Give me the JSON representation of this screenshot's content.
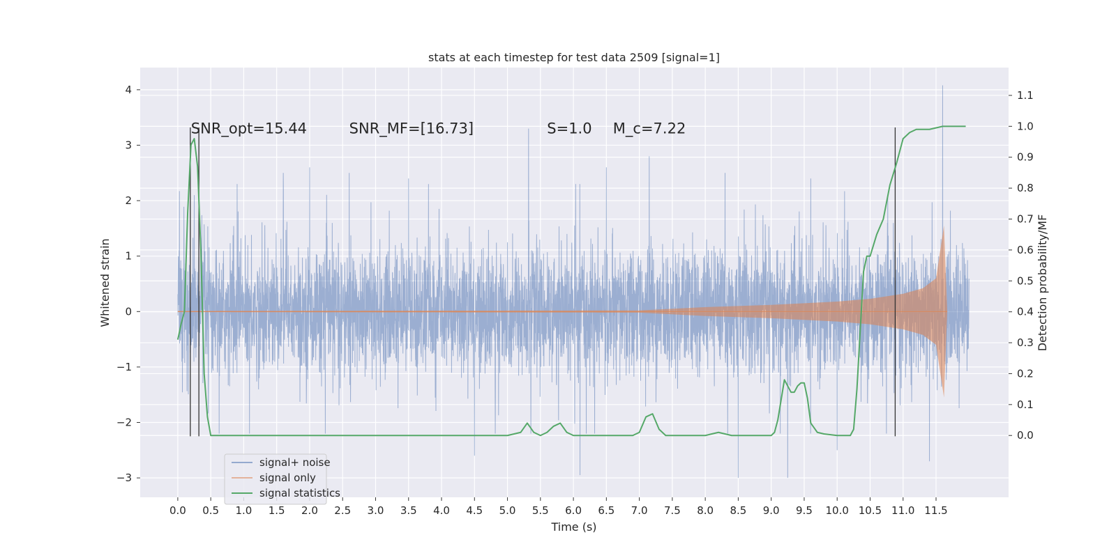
{
  "chart_data": {
    "type": "line",
    "title": "stats at each timestep for test data 2509 [signal=1]",
    "xlabel": "Time (s)",
    "ylabel": "Whitened strain",
    "ylabel_right": "Detection probability/MF",
    "xlim": [
      -0.57,
      12.6
    ],
    "ylim": [
      -3.35,
      4.4
    ],
    "ylim_right": [
      -0.2,
      1.19
    ],
    "xticks": [
      0.0,
      0.5,
      1.0,
      1.5,
      2.0,
      2.5,
      3.0,
      3.5,
      4.0,
      4.5,
      5.0,
      5.5,
      6.0,
      6.5,
      7.0,
      7.5,
      8.0,
      8.5,
      9.0,
      9.5,
      10.0,
      10.5,
      11.0,
      11.5
    ],
    "xtick_labels": [
      "0.0",
      "0.5",
      "1.0",
      "1.5",
      "2.0",
      "2.5",
      "3.0",
      "3.5",
      "4.0",
      "4.5",
      "5.0",
      "5.5",
      "6.0",
      "6.5",
      "7.0",
      "7.5",
      "8.0",
      "8.5",
      "9.0",
      "9.5",
      "10.0",
      "10.5",
      "11.0",
      "11.5"
    ],
    "yticks": [
      -3,
      -2,
      -1,
      0,
      1,
      2,
      3,
      4
    ],
    "ytick_labels": [
      "−3",
      "−2",
      "−1",
      "0",
      "1",
      "2",
      "3",
      "4"
    ],
    "yticks_right": [
      0.0,
      0.1,
      0.2,
      0.3,
      0.4,
      0.5,
      0.6,
      0.7,
      0.8,
      0.9,
      1.0,
      1.1
    ],
    "ytick_labels_right": [
      "0.0",
      "0.1",
      "0.2",
      "0.3",
      "0.4",
      "0.5",
      "0.6",
      "0.7",
      "0.8",
      "0.9",
      "1.0",
      "1.1"
    ],
    "grid": true,
    "legend_position": "lower-left",
    "annotations": [
      {
        "id": "snr-opt",
        "text": "SNR_opt=15.44",
        "x": 0.2,
        "y": 3.3
      },
      {
        "id": "snr-mf",
        "text": "SNR_MF=[16.73]",
        "x": 2.6,
        "y": 3.3
      },
      {
        "id": "s-value",
        "text": "S=1.0",
        "x": 5.6,
        "y": 3.3
      },
      {
        "id": "mc-value",
        "text": "M_c=7.22",
        "x": 6.6,
        "y": 3.3
      }
    ],
    "vertical_markers": [
      {
        "x": 0.19,
        "y_top": 3.32,
        "y_bottom": -2.25
      },
      {
        "x": 0.32,
        "y_top": 3.32,
        "y_bottom": -2.25
      },
      {
        "x": 10.88,
        "y_top": 3.32,
        "y_bottom": -2.25
      }
    ],
    "series": [
      {
        "name": "signal+ noise",
        "color": "#4c72b0",
        "x_range": [
          0.0,
          12.0
        ],
        "envelope_typical": [
          -1.4,
          1.4
        ],
        "peaks": [
          {
            "x": 0.25,
            "y": 2.1
          },
          {
            "x": 0.9,
            "y": 2.3
          },
          {
            "x": 1.6,
            "y": 2.5
          },
          {
            "x": 2.0,
            "y": 2.6
          },
          {
            "x": 2.6,
            "y": 2.5
          },
          {
            "x": 3.5,
            "y": 2.4
          },
          {
            "x": 4.5,
            "y": 2.5
          },
          {
            "x": 5.32,
            "y": 3.3
          },
          {
            "x": 6.5,
            "y": 2.6
          },
          {
            "x": 7.15,
            "y": 2.8
          },
          {
            "x": 8.3,
            "y": 2.5
          },
          {
            "x": 9.6,
            "y": 2.4
          },
          {
            "x": 11.6,
            "y": 4.08
          }
        ],
        "troughs": [
          {
            "x": 4.5,
            "y": -2.6
          },
          {
            "x": 6.1,
            "y": -2.95
          },
          {
            "x": 8.5,
            "y": -3.0
          },
          {
            "x": 9.25,
            "y": -3.0
          },
          {
            "x": 10.0,
            "y": -2.5
          },
          {
            "x": 11.4,
            "y": -2.7
          }
        ]
      },
      {
        "name": "signal only",
        "color": "#dd8452",
        "x": [
          0.0,
          7.0,
          7.5,
          8.0,
          9.0,
          10.0,
          10.5,
          11.0,
          11.3,
          11.5,
          11.62,
          11.67
        ],
        "amplitude": [
          0.01,
          0.02,
          0.05,
          0.08,
          0.12,
          0.18,
          0.23,
          0.32,
          0.42,
          0.6,
          1.55,
          0.0
        ]
      },
      {
        "name": "signal statistics",
        "color": "#55a868",
        "x": [
          0.0,
          0.05,
          0.1,
          0.15,
          0.2,
          0.25,
          0.3,
          0.35,
          0.4,
          0.45,
          0.5,
          0.55,
          0.6,
          1.0,
          2.0,
          3.0,
          4.0,
          5.0,
          5.2,
          5.3,
          5.4,
          5.5,
          5.6,
          5.7,
          5.8,
          5.9,
          6.0,
          6.5,
          6.9,
          7.0,
          7.1,
          7.2,
          7.3,
          7.4,
          7.5,
          8.0,
          8.2,
          8.4,
          8.6,
          8.8,
          9.0,
          9.05,
          9.1,
          9.2,
          9.3,
          9.35,
          9.4,
          9.45,
          9.5,
          9.55,
          9.6,
          9.7,
          9.8,
          10.0,
          10.2,
          10.25,
          10.3,
          10.4,
          10.45,
          10.5,
          10.6,
          10.7,
          10.8,
          10.9,
          11.0,
          11.1,
          11.2,
          11.4,
          11.6,
          11.95
        ],
        "values": [
          0.31,
          0.36,
          0.4,
          0.72,
          0.94,
          0.96,
          0.87,
          0.6,
          0.2,
          0.06,
          0.0,
          0.0,
          0.0,
          0.0,
          0.0,
          0.0,
          0.0,
          0.0,
          0.01,
          0.04,
          0.01,
          0.0,
          0.01,
          0.03,
          0.04,
          0.01,
          0.0,
          0.0,
          0.0,
          0.01,
          0.06,
          0.07,
          0.02,
          0.0,
          0.0,
          0.0,
          0.01,
          0.0,
          0.0,
          0.0,
          0.0,
          0.01,
          0.05,
          0.18,
          0.14,
          0.14,
          0.16,
          0.17,
          0.17,
          0.12,
          0.04,
          0.01,
          0.005,
          0.0,
          0.0,
          0.02,
          0.15,
          0.53,
          0.58,
          0.58,
          0.65,
          0.7,
          0.81,
          0.88,
          0.96,
          0.98,
          0.99,
          0.99,
          1.0,
          1.0
        ]
      }
    ],
    "legend": [
      {
        "label": "signal+ noise",
        "color": "#4c72b0",
        "alpha": 0.55
      },
      {
        "label": "signal only",
        "color": "#dd8452",
        "alpha": 0.55
      },
      {
        "label": "signal statistics",
        "color": "#55a868",
        "alpha": 1.0
      }
    ]
  },
  "colors": {
    "axes_background": "#eaeaf2",
    "grid": "#ffffff",
    "marker_line": "#333333"
  }
}
